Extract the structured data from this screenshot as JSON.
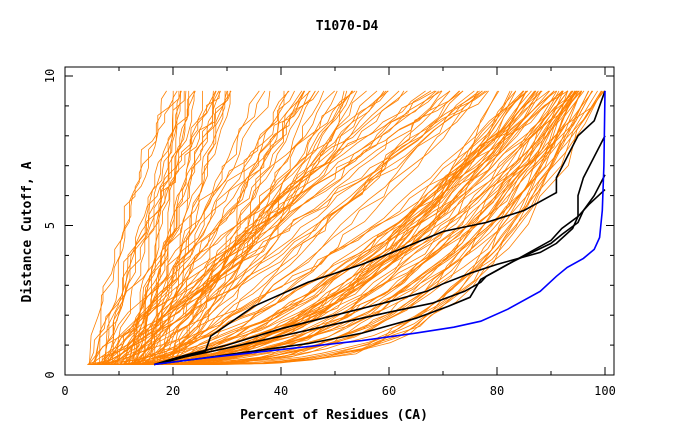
{
  "chart_data": {
    "type": "line",
    "title": "T1070-D4",
    "xlabel": "Percent of Residues (CA)",
    "ylabel": "Distance Cutoff, A",
    "xlim": [
      0,
      100
    ],
    "ylim": [
      0,
      10
    ],
    "x_ticks": [
      0,
      20,
      40,
      60,
      80,
      100
    ],
    "y_ticks": [
      0,
      5,
      10
    ],
    "grid": false,
    "legend": "none",
    "colors": {
      "orange": "#ff8000",
      "black": "#000000",
      "blue": "#0000ff"
    },
    "series_groups": {
      "orange_models": {
        "count": 150,
        "color": "#ff8000",
        "x_start_range": [
          4,
          20
        ],
        "y_start": 0.35,
        "y_end": 9.5
      }
    },
    "series": [
      {
        "color": "#000000",
        "x": [
          16.5,
          20,
          26,
          27,
          35,
          45,
          55,
          62,
          70,
          78,
          85,
          90,
          91,
          91,
          93,
          95,
          98,
          100
        ],
        "y": [
          0.35,
          0.5,
          0.8,
          1.3,
          2.3,
          3.1,
          3.7,
          4.2,
          4.8,
          5.1,
          5.5,
          6.0,
          6.1,
          6.6,
          7.3,
          8.0,
          8.5,
          9.5
        ]
      },
      {
        "color": "#000000",
        "x": [
          16.5,
          22,
          30,
          40,
          50,
          60,
          67,
          70,
          75,
          80,
          88,
          91,
          94,
          95,
          95,
          96,
          98,
          100
        ],
        "y": [
          0.35,
          0.65,
          1.0,
          1.55,
          2.0,
          2.45,
          2.8,
          3.05,
          3.4,
          3.7,
          4.1,
          4.4,
          4.9,
          5.3,
          6.0,
          6.6,
          7.3,
          8.0
        ]
      },
      {
        "color": "#000000",
        "x": [
          16.5,
          22,
          30,
          40,
          50,
          60,
          68,
          74,
          77,
          78,
          83,
          90,
          92,
          95,
          96,
          98,
          100
        ],
        "y": [
          0.35,
          0.6,
          0.9,
          1.3,
          1.7,
          2.1,
          2.4,
          2.8,
          3.1,
          3.3,
          3.8,
          4.4,
          4.7,
          5.1,
          5.5,
          6.0,
          6.7
        ]
      },
      {
        "color": "#000000",
        "x": [
          16.5,
          25,
          35,
          45,
          55,
          65,
          71,
          75,
          76,
          77,
          80,
          85,
          90,
          92,
          95,
          97,
          100
        ],
        "y": [
          0.35,
          0.55,
          0.8,
          1.05,
          1.4,
          1.9,
          2.3,
          2.6,
          2.9,
          3.2,
          3.5,
          4.0,
          4.5,
          4.9,
          5.3,
          5.7,
          6.2
        ]
      },
      {
        "color": "#0000ff",
        "x": [
          16.5,
          25,
          35,
          45,
          55,
          65,
          72,
          77,
          82,
          88,
          91,
          93,
          96,
          98,
          99,
          99.5,
          99.8,
          100
        ],
        "y": [
          0.35,
          0.55,
          0.75,
          0.95,
          1.15,
          1.4,
          1.6,
          1.8,
          2.2,
          2.8,
          3.3,
          3.6,
          3.9,
          4.2,
          4.6,
          5.5,
          7.0,
          9.5
        ]
      }
    ]
  }
}
